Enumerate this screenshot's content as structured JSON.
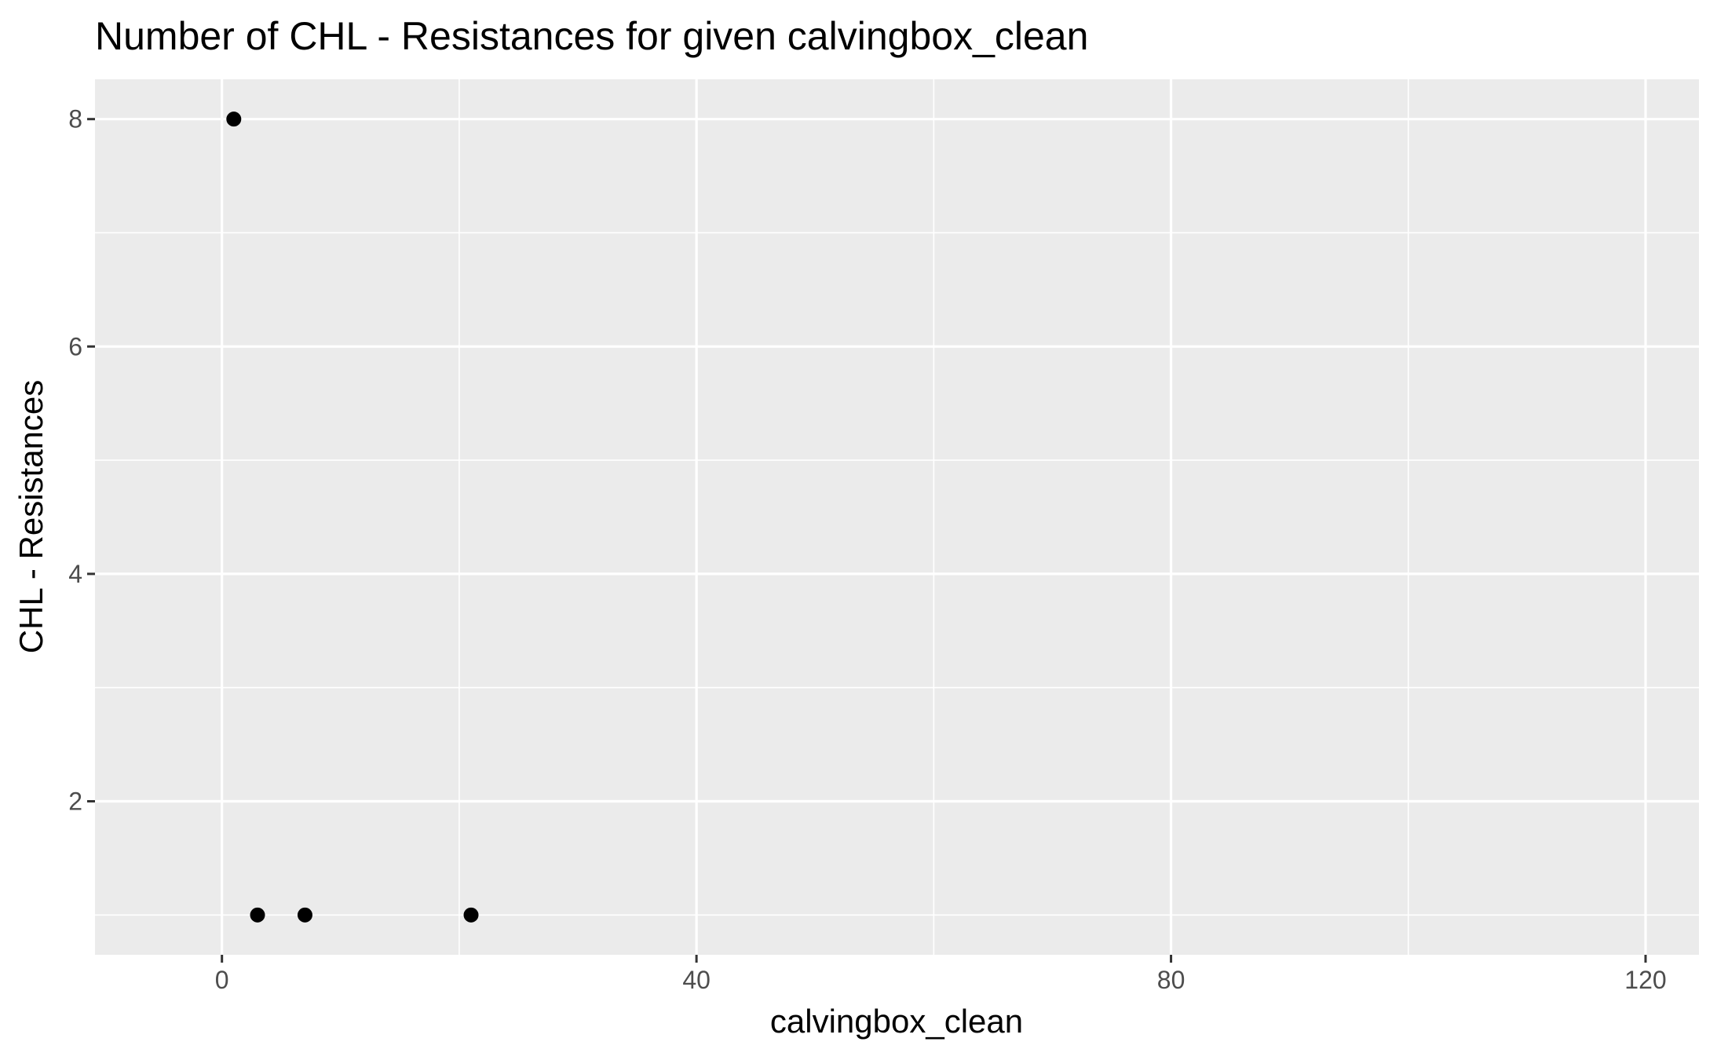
{
  "chart_data": {
    "type": "scatter",
    "title": "Number of CHL - Resistances for given calvingbox_clean",
    "xlabel": "calvingbox_clean",
    "ylabel": "CHL - Resistances",
    "xlim": [
      -10.7,
      124.5
    ],
    "ylim": [
      0.65,
      8.35
    ],
    "x_ticks": [
      0,
      40,
      80,
      120
    ],
    "x_tick_labels": [
      "0",
      "40",
      "80",
      "120"
    ],
    "x_minor_ticks": [
      20,
      60,
      100
    ],
    "y_ticks": [
      2,
      4,
      6,
      8
    ],
    "y_tick_labels": [
      "2",
      "4",
      "6",
      "8"
    ],
    "y_minor_ticks": [
      1,
      3,
      5,
      7
    ],
    "grid": true,
    "legend": "none",
    "background": "#ebebeb",
    "grid_color": "#ffffff",
    "point_color": "#000000",
    "points": [
      {
        "x": 1,
        "y": 8
      },
      {
        "x": 3,
        "y": 1
      },
      {
        "x": 7,
        "y": 1
      },
      {
        "x": 21,
        "y": 1
      }
    ]
  }
}
